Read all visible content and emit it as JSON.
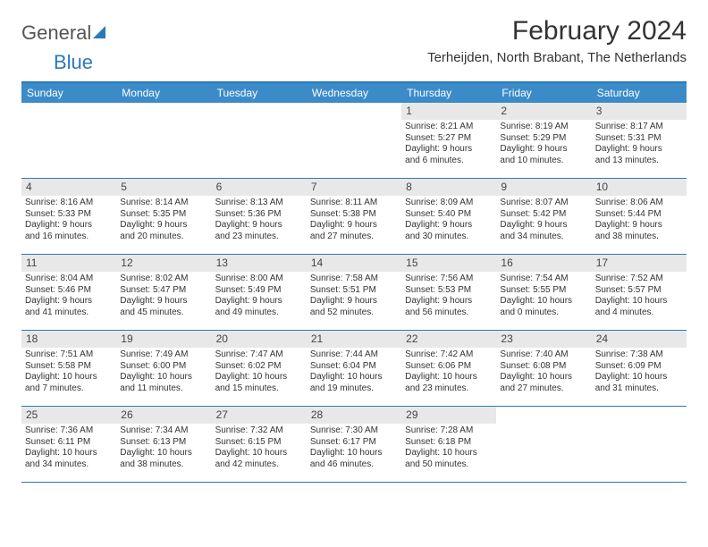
{
  "logo": {
    "text1": "General",
    "text2": "Blue"
  },
  "title": "February 2024",
  "location": "Terheijden, North Brabant, The Netherlands",
  "colors": {
    "header_bg": "#3b8bc9",
    "border": "#2a7ab8",
    "daynum_bg": "#e8e8e8",
    "text": "#333333"
  },
  "dow": [
    "Sunday",
    "Monday",
    "Tuesday",
    "Wednesday",
    "Thursday",
    "Friday",
    "Saturday"
  ],
  "weeks": [
    [
      {
        "n": "",
        "sr": "",
        "ss": "",
        "d1": "",
        "d2": ""
      },
      {
        "n": "",
        "sr": "",
        "ss": "",
        "d1": "",
        "d2": ""
      },
      {
        "n": "",
        "sr": "",
        "ss": "",
        "d1": "",
        "d2": ""
      },
      {
        "n": "",
        "sr": "",
        "ss": "",
        "d1": "",
        "d2": ""
      },
      {
        "n": "1",
        "sr": "Sunrise: 8:21 AM",
        "ss": "Sunset: 5:27 PM",
        "d1": "Daylight: 9 hours",
        "d2": "and 6 minutes."
      },
      {
        "n": "2",
        "sr": "Sunrise: 8:19 AM",
        "ss": "Sunset: 5:29 PM",
        "d1": "Daylight: 9 hours",
        "d2": "and 10 minutes."
      },
      {
        "n": "3",
        "sr": "Sunrise: 8:17 AM",
        "ss": "Sunset: 5:31 PM",
        "d1": "Daylight: 9 hours",
        "d2": "and 13 minutes."
      }
    ],
    [
      {
        "n": "4",
        "sr": "Sunrise: 8:16 AM",
        "ss": "Sunset: 5:33 PM",
        "d1": "Daylight: 9 hours",
        "d2": "and 16 minutes."
      },
      {
        "n": "5",
        "sr": "Sunrise: 8:14 AM",
        "ss": "Sunset: 5:35 PM",
        "d1": "Daylight: 9 hours",
        "d2": "and 20 minutes."
      },
      {
        "n": "6",
        "sr": "Sunrise: 8:13 AM",
        "ss": "Sunset: 5:36 PM",
        "d1": "Daylight: 9 hours",
        "d2": "and 23 minutes."
      },
      {
        "n": "7",
        "sr": "Sunrise: 8:11 AM",
        "ss": "Sunset: 5:38 PM",
        "d1": "Daylight: 9 hours",
        "d2": "and 27 minutes."
      },
      {
        "n": "8",
        "sr": "Sunrise: 8:09 AM",
        "ss": "Sunset: 5:40 PM",
        "d1": "Daylight: 9 hours",
        "d2": "and 30 minutes."
      },
      {
        "n": "9",
        "sr": "Sunrise: 8:07 AM",
        "ss": "Sunset: 5:42 PM",
        "d1": "Daylight: 9 hours",
        "d2": "and 34 minutes."
      },
      {
        "n": "10",
        "sr": "Sunrise: 8:06 AM",
        "ss": "Sunset: 5:44 PM",
        "d1": "Daylight: 9 hours",
        "d2": "and 38 minutes."
      }
    ],
    [
      {
        "n": "11",
        "sr": "Sunrise: 8:04 AM",
        "ss": "Sunset: 5:46 PM",
        "d1": "Daylight: 9 hours",
        "d2": "and 41 minutes."
      },
      {
        "n": "12",
        "sr": "Sunrise: 8:02 AM",
        "ss": "Sunset: 5:47 PM",
        "d1": "Daylight: 9 hours",
        "d2": "and 45 minutes."
      },
      {
        "n": "13",
        "sr": "Sunrise: 8:00 AM",
        "ss": "Sunset: 5:49 PM",
        "d1": "Daylight: 9 hours",
        "d2": "and 49 minutes."
      },
      {
        "n": "14",
        "sr": "Sunrise: 7:58 AM",
        "ss": "Sunset: 5:51 PM",
        "d1": "Daylight: 9 hours",
        "d2": "and 52 minutes."
      },
      {
        "n": "15",
        "sr": "Sunrise: 7:56 AM",
        "ss": "Sunset: 5:53 PM",
        "d1": "Daylight: 9 hours",
        "d2": "and 56 minutes."
      },
      {
        "n": "16",
        "sr": "Sunrise: 7:54 AM",
        "ss": "Sunset: 5:55 PM",
        "d1": "Daylight: 10 hours",
        "d2": "and 0 minutes."
      },
      {
        "n": "17",
        "sr": "Sunrise: 7:52 AM",
        "ss": "Sunset: 5:57 PM",
        "d1": "Daylight: 10 hours",
        "d2": "and 4 minutes."
      }
    ],
    [
      {
        "n": "18",
        "sr": "Sunrise: 7:51 AM",
        "ss": "Sunset: 5:58 PM",
        "d1": "Daylight: 10 hours",
        "d2": "and 7 minutes."
      },
      {
        "n": "19",
        "sr": "Sunrise: 7:49 AM",
        "ss": "Sunset: 6:00 PM",
        "d1": "Daylight: 10 hours",
        "d2": "and 11 minutes."
      },
      {
        "n": "20",
        "sr": "Sunrise: 7:47 AM",
        "ss": "Sunset: 6:02 PM",
        "d1": "Daylight: 10 hours",
        "d2": "and 15 minutes."
      },
      {
        "n": "21",
        "sr": "Sunrise: 7:44 AM",
        "ss": "Sunset: 6:04 PM",
        "d1": "Daylight: 10 hours",
        "d2": "and 19 minutes."
      },
      {
        "n": "22",
        "sr": "Sunrise: 7:42 AM",
        "ss": "Sunset: 6:06 PM",
        "d1": "Daylight: 10 hours",
        "d2": "and 23 minutes."
      },
      {
        "n": "23",
        "sr": "Sunrise: 7:40 AM",
        "ss": "Sunset: 6:08 PM",
        "d1": "Daylight: 10 hours",
        "d2": "and 27 minutes."
      },
      {
        "n": "24",
        "sr": "Sunrise: 7:38 AM",
        "ss": "Sunset: 6:09 PM",
        "d1": "Daylight: 10 hours",
        "d2": "and 31 minutes."
      }
    ],
    [
      {
        "n": "25",
        "sr": "Sunrise: 7:36 AM",
        "ss": "Sunset: 6:11 PM",
        "d1": "Daylight: 10 hours",
        "d2": "and 34 minutes."
      },
      {
        "n": "26",
        "sr": "Sunrise: 7:34 AM",
        "ss": "Sunset: 6:13 PM",
        "d1": "Daylight: 10 hours",
        "d2": "and 38 minutes."
      },
      {
        "n": "27",
        "sr": "Sunrise: 7:32 AM",
        "ss": "Sunset: 6:15 PM",
        "d1": "Daylight: 10 hours",
        "d2": "and 42 minutes."
      },
      {
        "n": "28",
        "sr": "Sunrise: 7:30 AM",
        "ss": "Sunset: 6:17 PM",
        "d1": "Daylight: 10 hours",
        "d2": "and 46 minutes."
      },
      {
        "n": "29",
        "sr": "Sunrise: 7:28 AM",
        "ss": "Sunset: 6:18 PM",
        "d1": "Daylight: 10 hours",
        "d2": "and 50 minutes."
      },
      {
        "n": "",
        "sr": "",
        "ss": "",
        "d1": "",
        "d2": ""
      },
      {
        "n": "",
        "sr": "",
        "ss": "",
        "d1": "",
        "d2": ""
      }
    ]
  ]
}
